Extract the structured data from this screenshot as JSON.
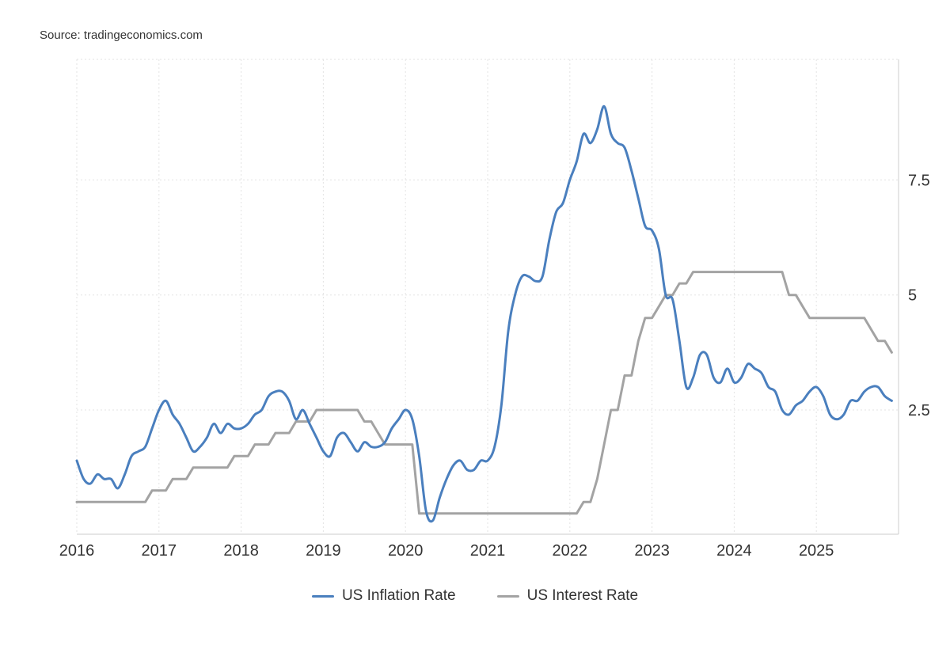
{
  "source_label": "Source: tradingeconomics.com",
  "colors": {
    "grid": "#e3e3e3",
    "axis": "#cccccc",
    "text": "#333333"
  },
  "chart_data": {
    "type": "line",
    "title": "",
    "x_unit": "month",
    "x_range": [
      "2016-01",
      "2025-12"
    ],
    "x_tick_labels": [
      "2016",
      "2017",
      "2018",
      "2019",
      "2020",
      "2021",
      "2022",
      "2023",
      "2024",
      "2025"
    ],
    "y_ticks": [
      7.5,
      5,
      2.5
    ],
    "y_tick_labels": [
      "7.5",
      "5",
      "2.5"
    ],
    "ylim": [
      -0.2,
      10.12
    ],
    "grid": "dashed",
    "legend_position": "bottom",
    "series": [
      {
        "name": "US Inflation Rate",
        "color": "#4a7fbe",
        "values": [
          1.4,
          1.0,
          0.9,
          1.1,
          1.0,
          1.0,
          0.8,
          1.1,
          1.5,
          1.6,
          1.7,
          2.1,
          2.5,
          2.7,
          2.4,
          2.2,
          1.9,
          1.6,
          1.7,
          1.9,
          2.2,
          2.0,
          2.2,
          2.1,
          2.1,
          2.2,
          2.4,
          2.5,
          2.8,
          2.9,
          2.9,
          2.7,
          2.3,
          2.5,
          2.2,
          1.9,
          1.6,
          1.5,
          1.9,
          2.0,
          1.8,
          1.6,
          1.8,
          1.7,
          1.7,
          1.8,
          2.1,
          2.3,
          2.5,
          2.3,
          1.5,
          0.3,
          0.1,
          0.6,
          1.0,
          1.3,
          1.4,
          1.2,
          1.2,
          1.4,
          1.4,
          1.7,
          2.6,
          4.2,
          5.0,
          5.4,
          5.4,
          5.3,
          5.4,
          6.2,
          6.8,
          7.0,
          7.5,
          7.9,
          8.5,
          8.3,
          8.6,
          9.1,
          8.5,
          8.3,
          8.2,
          7.7,
          7.1,
          6.5,
          6.4,
          6.0,
          5.0,
          4.9,
          4.0,
          3.0,
          3.2,
          3.7,
          3.7,
          3.2,
          3.1,
          3.4,
          3.1,
          3.2,
          3.5,
          3.4,
          3.3,
          3.0,
          2.9,
          2.5,
          2.4,
          2.6,
          2.7,
          2.9,
          3.0,
          2.8,
          2.4,
          2.3,
          2.4,
          2.7,
          2.7,
          2.9,
          3.0,
          3.0,
          2.8,
          2.7
        ]
      },
      {
        "name": "US Interest Rate",
        "color": "#a3a3a3",
        "values": [
          0.5,
          0.5,
          0.5,
          0.5,
          0.5,
          0.5,
          0.5,
          0.5,
          0.5,
          0.5,
          0.5,
          0.75,
          0.75,
          0.75,
          1.0,
          1.0,
          1.0,
          1.25,
          1.25,
          1.25,
          1.25,
          1.25,
          1.25,
          1.5,
          1.5,
          1.5,
          1.75,
          1.75,
          1.75,
          2.0,
          2.0,
          2.0,
          2.25,
          2.25,
          2.25,
          2.5,
          2.5,
          2.5,
          2.5,
          2.5,
          2.5,
          2.5,
          2.25,
          2.25,
          2.0,
          1.75,
          1.75,
          1.75,
          1.75,
          1.75,
          0.25,
          0.25,
          0.25,
          0.25,
          0.25,
          0.25,
          0.25,
          0.25,
          0.25,
          0.25,
          0.25,
          0.25,
          0.25,
          0.25,
          0.25,
          0.25,
          0.25,
          0.25,
          0.25,
          0.25,
          0.25,
          0.25,
          0.25,
          0.25,
          0.5,
          0.5,
          1.0,
          1.75,
          2.5,
          2.5,
          3.25,
          3.25,
          4.0,
          4.5,
          4.5,
          4.75,
          5.0,
          5.0,
          5.25,
          5.25,
          5.5,
          5.5,
          5.5,
          5.5,
          5.5,
          5.5,
          5.5,
          5.5,
          5.5,
          5.5,
          5.5,
          5.5,
          5.5,
          5.5,
          5.0,
          5.0,
          4.75,
          4.5,
          4.5,
          4.5,
          4.5,
          4.5,
          4.5,
          4.5,
          4.5,
          4.5,
          4.25,
          4.0,
          4.0,
          3.75
        ]
      }
    ]
  }
}
